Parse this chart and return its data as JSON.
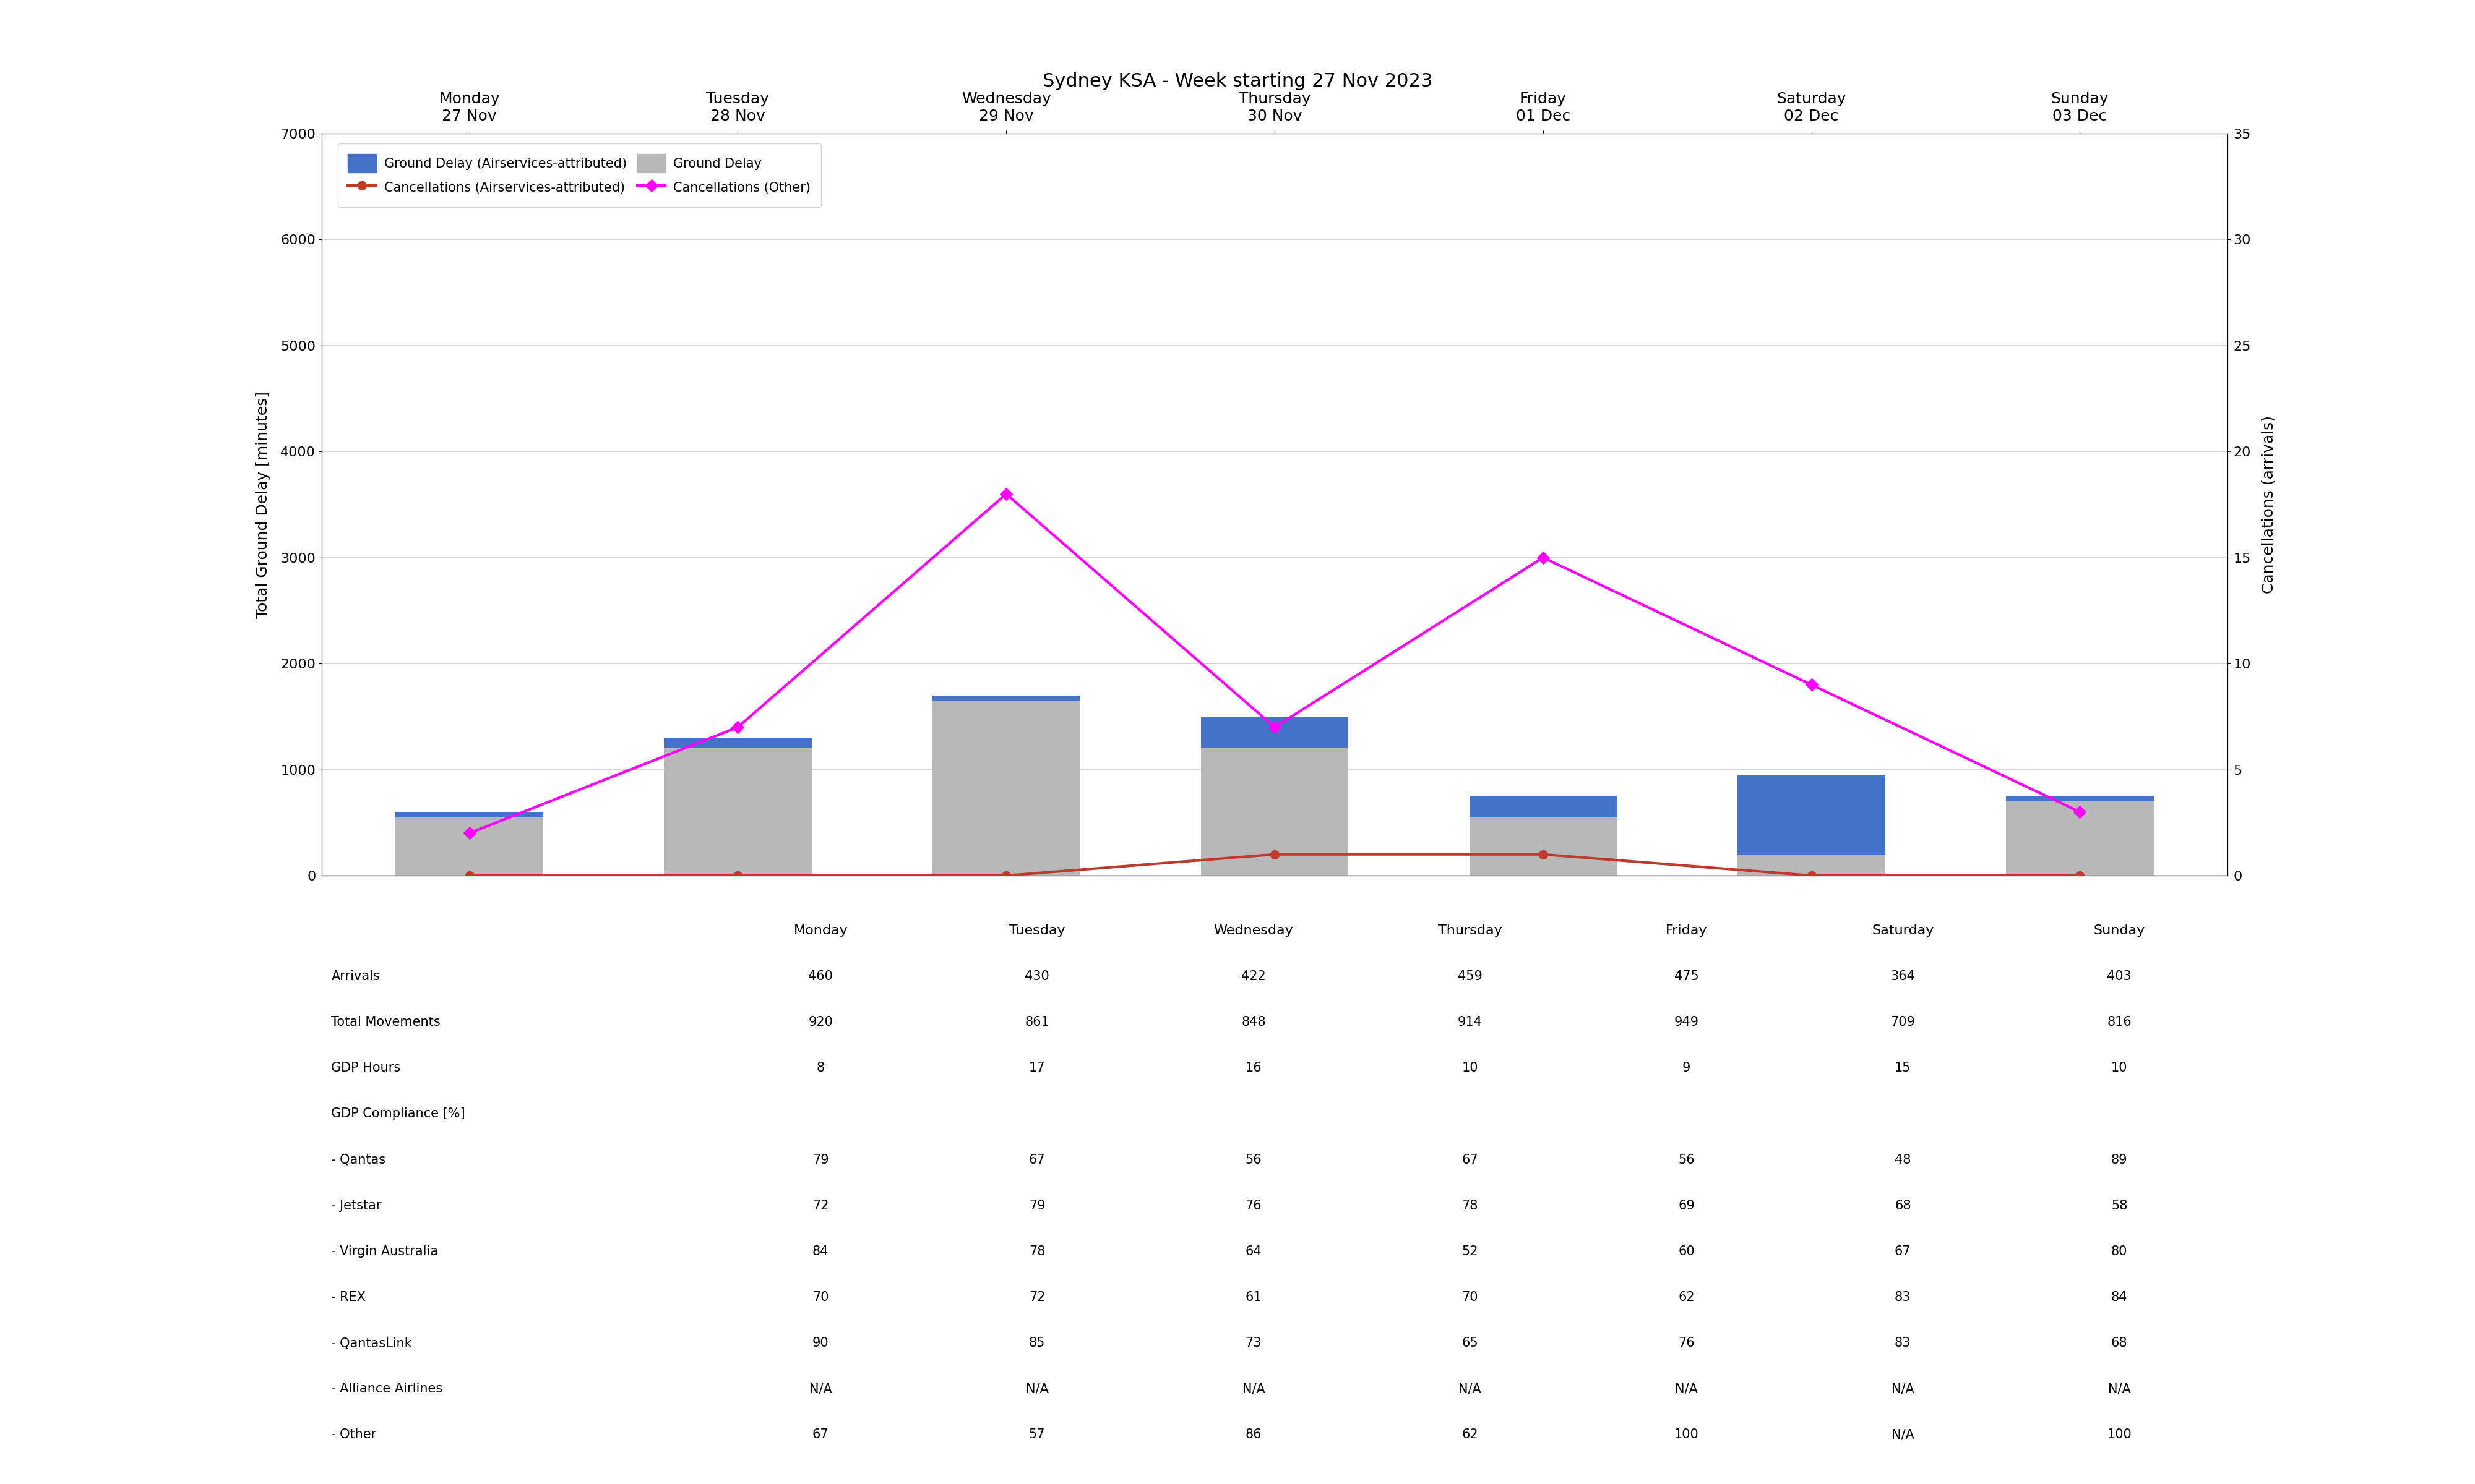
{
  "title": "Sydney KSA - Week starting 27 Nov 2023",
  "days": [
    "Monday\n27 Nov",
    "Tuesday\n28 Nov",
    "Wednesday\n29 Nov",
    "Thursday\n30 Nov",
    "Friday\n01 Dec",
    "Saturday\n02 Dec",
    "Sunday\n03 Dec"
  ],
  "days_table": [
    "Monday",
    "Tuesday",
    "Wednesday",
    "Thursday",
    "Friday",
    "Saturday",
    "Sunday"
  ],
  "ground_delay_total": [
    600,
    1300,
    1700,
    1500,
    750,
    950,
    750
  ],
  "ground_delay_airservices": [
    50,
    100,
    50,
    300,
    200,
    750,
    50
  ],
  "cancellations_airservices": [
    0,
    0,
    0,
    1,
    1,
    0,
    0
  ],
  "cancellations_other": [
    2,
    7,
    18,
    7,
    15,
    9,
    3
  ],
  "bar_color_total": "#b8b8b8",
  "bar_color_airservices": "#4472c4",
  "line_color_airservices": "#c0392b",
  "line_color_other": "#ff00ff",
  "ylabel_left": "Total Ground Delay [minutes]",
  "ylabel_right": "Cancellations (arrivals)",
  "ylim_left": [
    0,
    7000
  ],
  "ylim_right": [
    0,
    35
  ],
  "yticks_left": [
    0,
    1000,
    2000,
    3000,
    4000,
    5000,
    6000,
    7000
  ],
  "yticks_right": [
    0,
    5,
    10,
    15,
    20,
    25,
    30,
    35
  ],
  "legend_labels": [
    "Ground Delay (Airservices-attributed)",
    "Ground Delay",
    "Cancellations (Airservices-attributed)",
    "Cancellations (Other)"
  ],
  "table_rows": {
    "Arrivals": [
      "460",
      "430",
      "422",
      "459",
      "475",
      "364",
      "403"
    ],
    "Total Movements": [
      "920",
      "861",
      "848",
      "914",
      "949",
      "709",
      "816"
    ],
    "GDP Hours": [
      "8",
      "17",
      "16",
      "10",
      "9",
      "15",
      "10"
    ],
    "GDP Compliance [%]": [
      "",
      "",
      "",
      "",
      "",
      "",
      ""
    ],
    "- Qantas": [
      "79",
      "67",
      "56",
      "67",
      "56",
      "48",
      "89"
    ],
    "- Jetstar": [
      "72",
      "79",
      "76",
      "78",
      "69",
      "68",
      "58"
    ],
    "- Virgin Australia": [
      "84",
      "78",
      "64",
      "52",
      "60",
      "67",
      "80"
    ],
    "- REX": [
      "70",
      "72",
      "61",
      "70",
      "62",
      "83",
      "84"
    ],
    "- QantasLink": [
      "90",
      "85",
      "73",
      "65",
      "76",
      "83",
      "68"
    ],
    "- Alliance Airlines": [
      "N/A",
      "N/A",
      "N/A",
      "N/A",
      "N/A",
      "N/A",
      "N/A"
    ],
    "- Other": [
      "67",
      "57",
      "86",
      "62",
      "100",
      "N/A",
      "100"
    ]
  },
  "table_row_order": [
    "Arrivals",
    "Total Movements",
    "GDP Hours",
    "GDP Compliance [%]",
    "- Qantas",
    "- Jetstar",
    "- Virgin Australia",
    "- REX",
    "- QantasLink",
    "- Alliance Airlines",
    "- Other"
  ]
}
